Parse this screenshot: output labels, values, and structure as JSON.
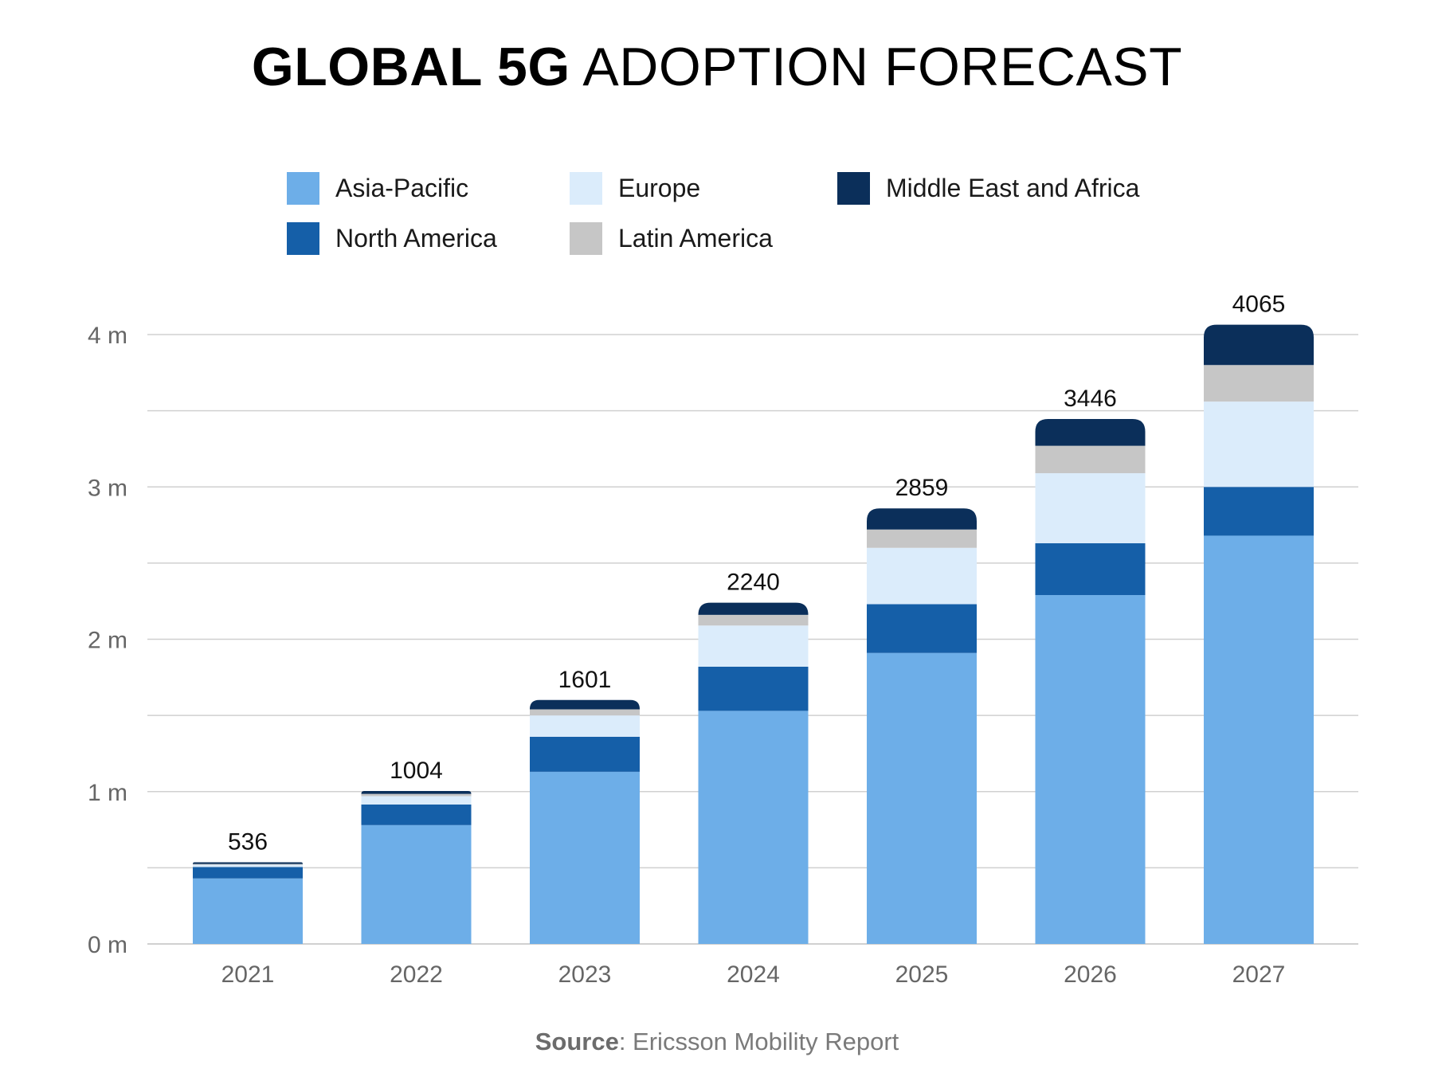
{
  "title": {
    "bold": "GLOBAL 5G",
    "light": "ADOPTION FORECAST"
  },
  "source": {
    "label": "Source",
    "text": ": Ericsson Mobility Report"
  },
  "colors": {
    "asia_pacific": "#6daee8",
    "north_america": "#155fa8",
    "europe": "#dbecfb",
    "latin_america": "#c6c6c6",
    "middle_east_africa": "#0b2f5a",
    "grid": "#d0d0d0",
    "axis_text": "#666666"
  },
  "chart_data": {
    "type": "bar",
    "stacked": true,
    "title": "GLOBAL 5G ADOPTION FORECAST",
    "categories": [
      "2021",
      "2022",
      "2023",
      "2024",
      "2025",
      "2026",
      "2027"
    ],
    "series": [
      {
        "name": "Asia-Pacific",
        "color_key": "asia_pacific",
        "values": [
          430,
          780,
          1130,
          1530,
          1910,
          2290,
          2680
        ]
      },
      {
        "name": "North America",
        "color_key": "north_america",
        "values": [
          75,
          135,
          230,
          290,
          320,
          340,
          320
        ]
      },
      {
        "name": "Europe",
        "color_key": "europe",
        "values": [
          15,
          55,
          140,
          270,
          370,
          460,
          560
        ]
      },
      {
        "name": "Latin America",
        "color_key": "latin_america",
        "values": [
          5,
          15,
          40,
          70,
          120,
          180,
          240
        ]
      },
      {
        "name": "Middle East and Africa",
        "color_key": "middle_east_africa",
        "values": [
          11,
          19,
          61,
          80,
          139,
          176,
          265
        ]
      }
    ],
    "totals": [
      "536",
      "1004",
      "1601",
      "2240",
      "2859",
      "3446",
      "4065"
    ],
    "y_ticks": [
      {
        "value": 0,
        "label": "0 m"
      },
      {
        "value": 1000,
        "label": "1 m"
      },
      {
        "value": 2000,
        "label": "2 m"
      },
      {
        "value": 3000,
        "label": "3 m"
      },
      {
        "value": 4000,
        "label": "4 m"
      }
    ],
    "ylim": [
      0,
      4000
    ],
    "minor_grid_step": 500,
    "grid": true,
    "legend_position": "top"
  }
}
